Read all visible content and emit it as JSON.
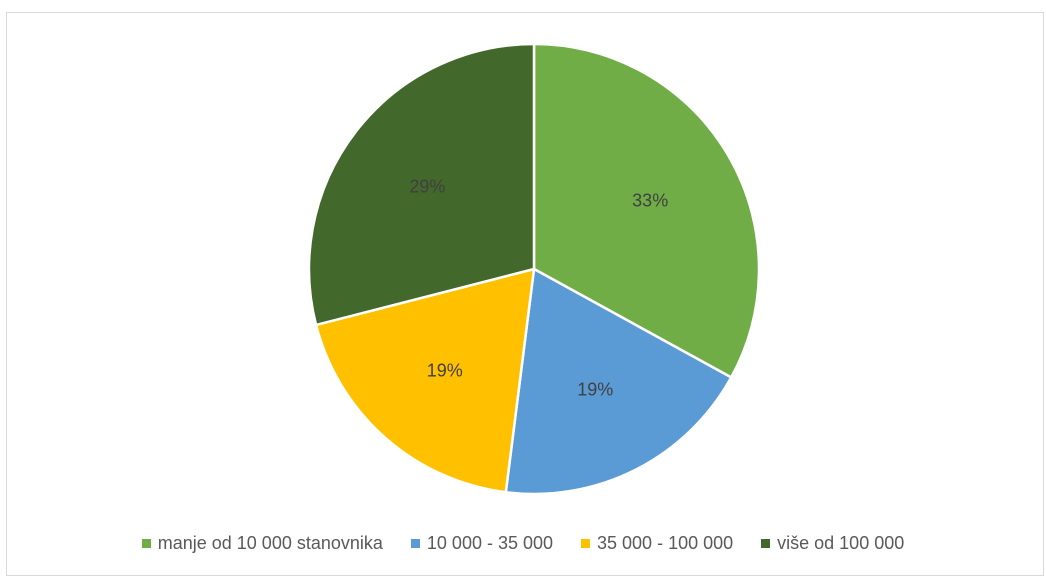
{
  "chart_data": {
    "type": "pie",
    "categories": [
      "manje od 10 000 stanovnika",
      "10 000 - 35 000",
      "35 000 - 100 000",
      "više od 100 000"
    ],
    "values": [
      33,
      19,
      19,
      29
    ],
    "labels": [
      "33%",
      "19%",
      "19%",
      "29%"
    ],
    "colors": [
      "#70ad47",
      "#5b9bd5",
      "#ffc000",
      "#43682b"
    ],
    "legend_position": "bottom",
    "start_angle_deg": 0,
    "direction": "clockwise"
  }
}
